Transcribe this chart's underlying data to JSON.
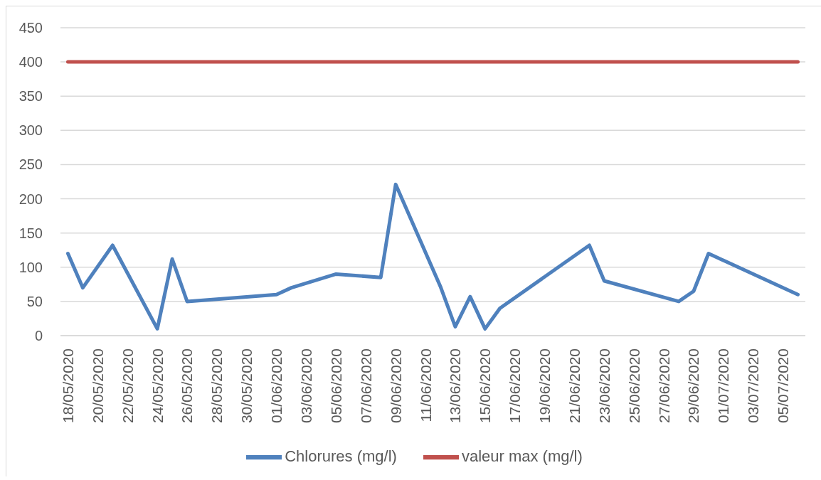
{
  "chart_data": {
    "type": "line",
    "x": [
      "2020-05-18",
      "2020-05-19",
      "2020-05-21",
      "2020-05-24",
      "2020-05-25",
      "2020-05-26",
      "2020-06-01",
      "2020-06-02",
      "2020-06-05",
      "2020-06-08",
      "2020-06-09",
      "2020-06-12",
      "2020-06-13",
      "2020-06-14",
      "2020-06-15",
      "2020-06-16",
      "2020-06-22",
      "2020-06-23",
      "2020-06-28",
      "2020-06-29",
      "2020-06-30",
      "2020-07-06"
    ],
    "series": [
      {
        "name": "Chlorures (mg/l)",
        "color": "#4f81bd",
        "values": [
          120,
          70,
          132,
          10,
          112,
          50,
          60,
          70,
          90,
          85,
          221,
          72,
          13,
          57,
          10,
          40,
          132,
          80,
          50,
          65,
          120,
          60
        ]
      },
      {
        "name": "valeur max (mg/l)",
        "color": "#c0504d",
        "x": [
          "2020-05-18",
          "2020-07-06"
        ],
        "values": [
          400,
          400
        ]
      }
    ],
    "xlim": [
      "2020-05-17T12:00",
      "2020-07-06T12:00"
    ],
    "xticks": [
      {
        "value": "2020-05-18",
        "label": "18/05/2020"
      },
      {
        "value": "2020-05-20",
        "label": "20/05/2020"
      },
      {
        "value": "2020-05-22",
        "label": "22/05/2020"
      },
      {
        "value": "2020-05-24",
        "label": "24/05/2020"
      },
      {
        "value": "2020-05-26",
        "label": "26/05/2020"
      },
      {
        "value": "2020-05-28",
        "label": "28/05/2020"
      },
      {
        "value": "2020-05-30",
        "label": "30/05/2020"
      },
      {
        "value": "2020-06-01",
        "label": "01/06/2020"
      },
      {
        "value": "2020-06-03",
        "label": "03/06/2020"
      },
      {
        "value": "2020-06-05",
        "label": "05/06/2020"
      },
      {
        "value": "2020-06-07",
        "label": "07/06/2020"
      },
      {
        "value": "2020-06-09",
        "label": "09/06/2020"
      },
      {
        "value": "2020-06-11",
        "label": "11/06/2020"
      },
      {
        "value": "2020-06-13",
        "label": "13/06/2020"
      },
      {
        "value": "2020-06-15",
        "label": "15/06/2020"
      },
      {
        "value": "2020-06-17",
        "label": "17/06/2020"
      },
      {
        "value": "2020-06-19",
        "label": "19/06/2020"
      },
      {
        "value": "2020-06-21",
        "label": "21/06/2020"
      },
      {
        "value": "2020-06-23",
        "label": "23/06/2020"
      },
      {
        "value": "2020-06-25",
        "label": "25/06/2020"
      },
      {
        "value": "2020-06-27",
        "label": "27/06/2020"
      },
      {
        "value": "2020-06-29",
        "label": "29/06/2020"
      },
      {
        "value": "2020-07-01",
        "label": "01/07/2020"
      },
      {
        "value": "2020-07-03",
        "label": "03/07/2020"
      },
      {
        "value": "2020-07-05",
        "label": "05/07/2020"
      }
    ],
    "ylim": [
      0,
      450
    ],
    "yticks": [
      0,
      50,
      100,
      150,
      200,
      250,
      300,
      350,
      400,
      450
    ],
    "grid": "y",
    "legend": "bottom",
    "marker": "none",
    "line_style": "solid"
  }
}
